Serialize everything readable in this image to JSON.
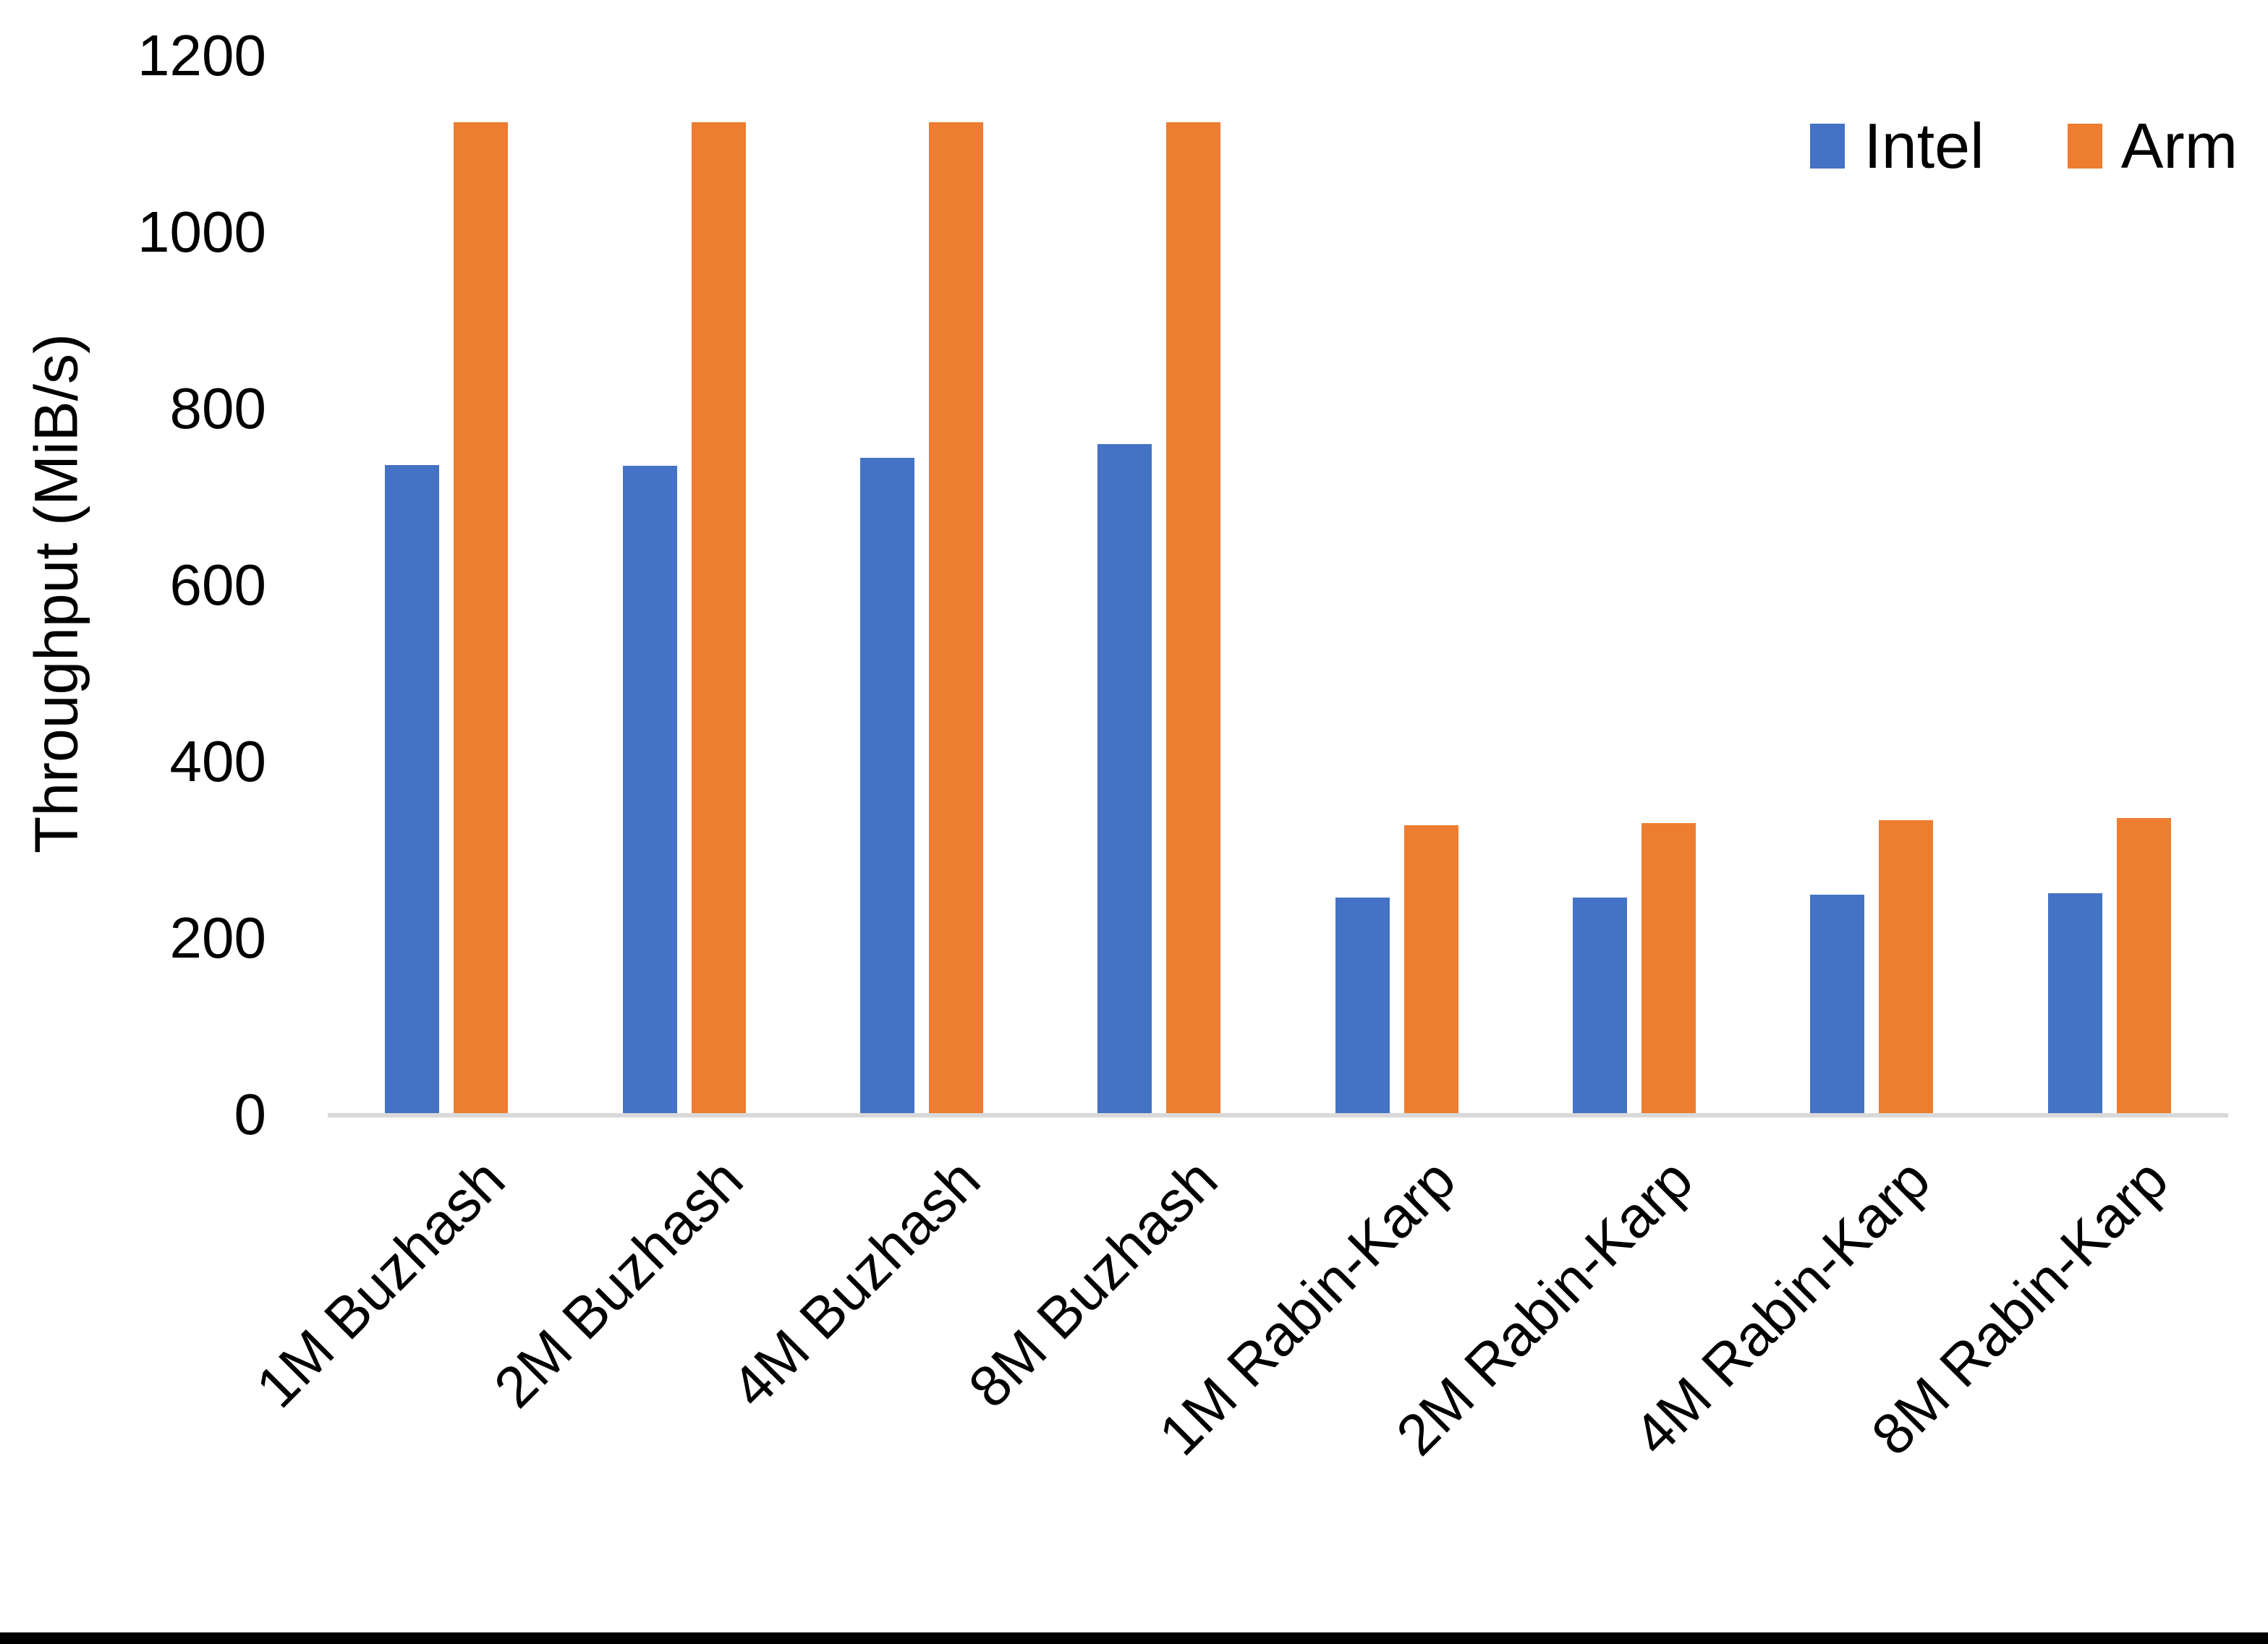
{
  "chart_data": {
    "type": "bar",
    "title": "",
    "xlabel": "",
    "ylabel": "Throughput (MiB/s)",
    "ylim": [
      0,
      1200
    ],
    "yticks": [
      0,
      200,
      400,
      600,
      800,
      1000,
      1200
    ],
    "grid": false,
    "legend_position": "top-right",
    "categories": [
      "1M Buzhash",
      "2M Buzhash",
      "4M Buzhash",
      "8M Buzhash",
      "1M Rabin-Karp",
      "2M Rabin-Karp",
      "4M Rabin-Karp",
      "8M Rabin-Karp"
    ],
    "series": [
      {
        "name": "Intel",
        "color": "#4472C4",
        "values": [
          736,
          735,
          744,
          760,
          246,
          246,
          249,
          251
        ]
      },
      {
        "name": "Arm",
        "color": "#ED7D31",
        "values": [
          1125,
          1125,
          1125,
          1125,
          328,
          330,
          334,
          336
        ]
      }
    ],
    "colors": {
      "intel": "#4472C4",
      "arm": "#ED7D31",
      "axis_line": "#D9D9D9",
      "text": "#000000",
      "background": "#FFFFFF",
      "bottom_border": "#000000"
    }
  }
}
